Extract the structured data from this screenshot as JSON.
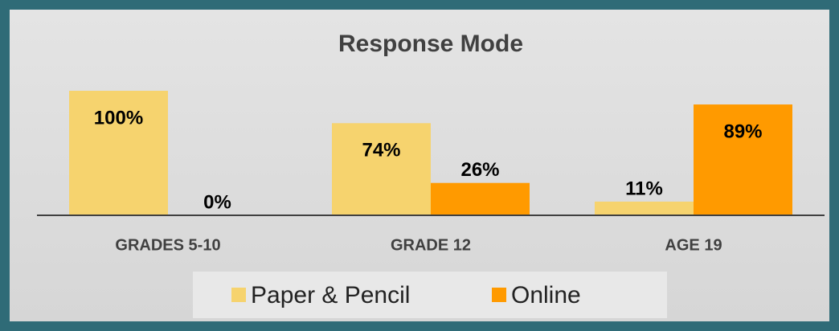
{
  "chart_data": {
    "type": "bar",
    "title": "Response Mode",
    "categories": [
      "GRADES 5-10",
      "GRADE 12",
      "AGE 19"
    ],
    "series": [
      {
        "name": "Paper & Pencil",
        "color": "#f6d36e",
        "values": [
          100,
          74,
          11
        ],
        "value_labels": [
          "100%",
          "74%",
          "11%"
        ]
      },
      {
        "name": "Online",
        "color": "#ff9a00",
        "values": [
          0,
          26,
          89
        ],
        "value_labels": [
          "0%",
          "26%",
          "89%"
        ]
      }
    ],
    "ylim": [
      0,
      100
    ],
    "legend": "bottom"
  }
}
